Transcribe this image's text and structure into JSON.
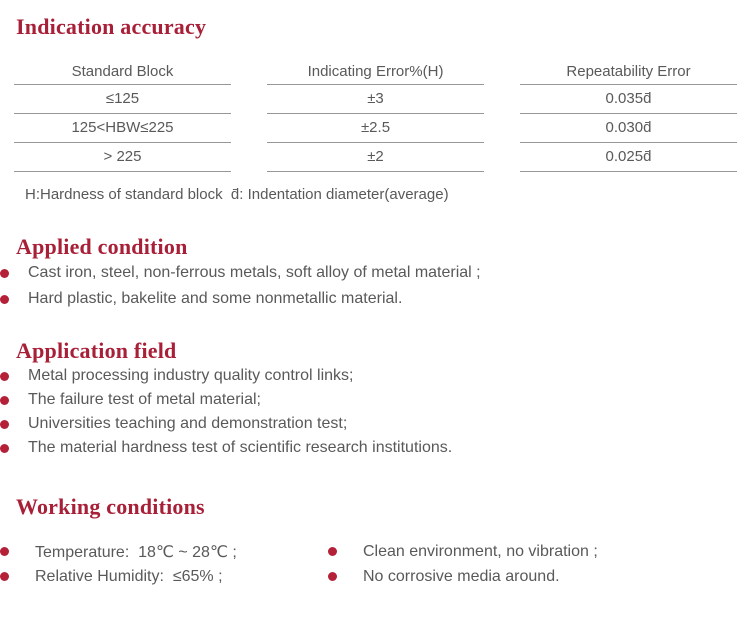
{
  "colors": {
    "heading_accent": "#a81f38",
    "bullet": "#b32038",
    "body_text": "#595959",
    "table_line": "#979797",
    "background": "#ffffff"
  },
  "indication": {
    "title": "Indication accuracy",
    "table": {
      "columns": [
        "Standard Block",
        "Indicating Error%(H)",
        "Repeatability Error"
      ],
      "rows": [
        [
          "≤125",
          "±3",
          "0.035d̄"
        ],
        [
          "125<HBW≤225",
          "±2.5",
          "0.030d̄"
        ],
        [
          "> 225",
          "±2",
          "0.025d̄"
        ]
      ]
    },
    "note": "H:Hardness of standard block  d̄: Indentation diameter(average)"
  },
  "applied": {
    "title": "Applied condition",
    "items": [
      "Cast iron, steel, non-ferrous metals, soft alloy of metal material ;",
      "Hard plastic, bakelite and some nonmetallic material."
    ]
  },
  "application": {
    "title": "Application field",
    "items": [
      "Metal processing industry quality control links;",
      "The failure test of metal material;",
      "Universities teaching and demonstration test;",
      "The material hardness test of scientific research institutions."
    ]
  },
  "working": {
    "title": "Working conditions",
    "left_items": [
      "Temperature:  18℃ ~ 28℃ ;",
      "Relative Humidity:  ≤65% ;"
    ],
    "right_items": [
      "Clean environment, no vibration ;",
      "No corrosive media around."
    ]
  }
}
